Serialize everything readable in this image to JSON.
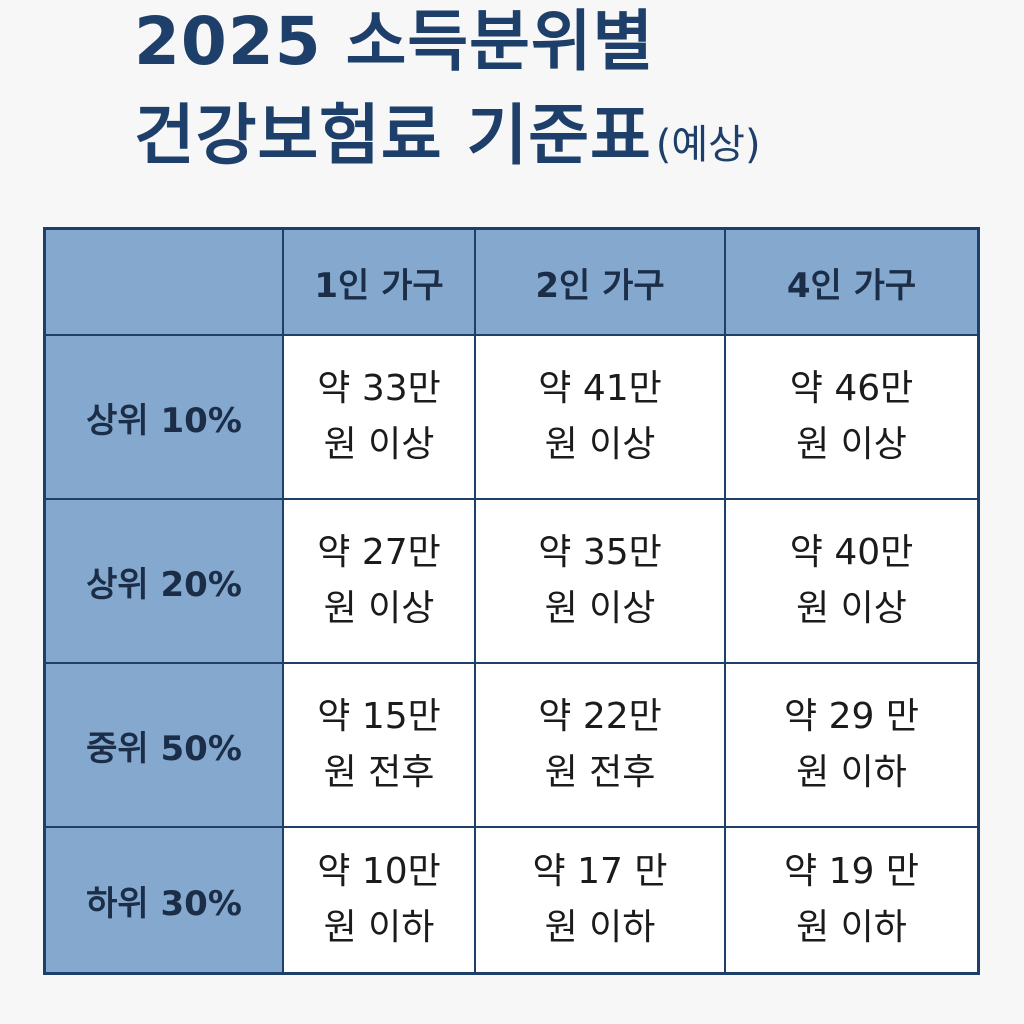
{
  "title": {
    "line1": "2025 소득분위별",
    "line2": "건강보험료 기준표",
    "suffix": "(예상)"
  },
  "colors": {
    "title": "#1d3f6a",
    "header_fill": "#85a8cf",
    "border": "#1d3f6a",
    "cell_fill": "#ffffff"
  },
  "chart_data": {
    "type": "table",
    "columns": [
      "",
      "1인 가구",
      "2인 가구",
      "4인 가구"
    ],
    "rows": [
      {
        "label": "상위 10%",
        "cells": [
          {
            "line1": "약 33만",
            "line2": "원 이상"
          },
          {
            "line1": "약 41만",
            "line2": "원 이상"
          },
          {
            "line1": "약 46만",
            "line2": "원 이상"
          }
        ]
      },
      {
        "label": "상위 20%",
        "cells": [
          {
            "line1": "약 27만",
            "line2": "원 이상"
          },
          {
            "line1": "약 35만",
            "line2": "원 이상"
          },
          {
            "line1": "약 40만",
            "line2": "원 이상"
          }
        ]
      },
      {
        "label": "중위 50%",
        "cells": [
          {
            "line1": "약 15만",
            "line2": "원 전후"
          },
          {
            "line1": "약 22만",
            "line2": "원 전후"
          },
          {
            "line1": "약 29 만",
            "line2": "원 이하"
          }
        ]
      },
      {
        "label": "하위 30%",
        "cells": [
          {
            "line1": "약 10만",
            "line2": "원 이하"
          },
          {
            "line1": "약 17 만",
            "line2": "원 이하"
          },
          {
            "line1": "약 19 만",
            "line2": "원 이하"
          }
        ]
      }
    ]
  }
}
